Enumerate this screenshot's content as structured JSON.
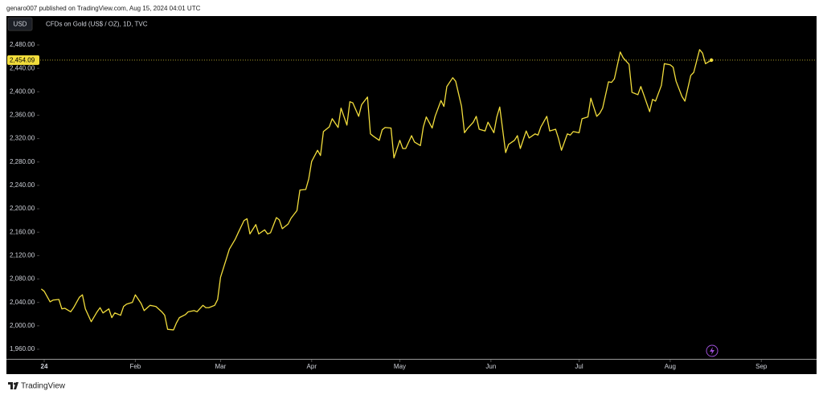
{
  "header": {
    "byline": "genaro007 published on TradingView.com, Aug 15, 2024 04:01 UTC"
  },
  "footer": {
    "brand": "TradingView"
  },
  "chart_data": {
    "type": "line",
    "title": "CFDs on Gold (US$ / OZ), 1D, TVC",
    "currency": "USD",
    "color": "#f2dd3c",
    "x": [
      -1,
      0,
      2,
      3,
      5,
      6,
      7,
      9,
      10,
      12,
      13,
      14,
      16,
      18,
      19,
      20,
      22,
      23,
      24,
      26,
      27,
      28,
      30,
      31,
      33,
      34,
      36,
      37,
      38,
      40,
      41,
      42,
      44,
      45,
      46,
      48,
      49,
      51,
      52,
      54,
      55,
      56,
      58,
      59,
      60,
      62,
      63,
      65,
      66,
      68,
      69,
      70,
      72,
      73,
      75,
      76,
      77,
      79,
      80,
      81,
      83,
      84,
      86,
      87,
      89,
      90,
      91,
      93,
      94,
      95,
      97,
      98,
      100,
      101,
      103,
      104,
      105,
      107,
      108,
      110,
      111,
      112,
      114,
      115,
      116,
      118,
      119,
      121,
      122,
      123,
      125,
      126,
      128,
      129,
      130,
      132,
      133,
      135,
      136,
      137,
      139,
      140,
      142,
      143,
      144,
      146,
      147,
      148,
      150,
      151,
      153,
      154,
      155,
      157,
      158,
      160,
      161,
      162,
      164,
      165,
      167,
      168,
      169,
      171,
      172,
      174,
      175,
      176,
      178,
      179,
      180,
      182,
      183,
      185,
      186,
      188,
      189,
      190,
      192,
      193,
      194,
      196,
      197,
      199,
      200,
      202,
      203,
      204,
      206,
      207,
      208,
      210,
      211,
      213,
      214,
      215,
      217,
      218,
      220,
      221,
      223,
      224,
      225,
      227
    ],
    "values": [
      2063,
      2059,
      2041,
      2044,
      2045,
      2029,
      2030,
      2024,
      2031,
      2049,
      2053,
      2029,
      2007,
      2024,
      2031,
      2022,
      2029,
      2014,
      2022,
      2018,
      2033,
      2037,
      2040,
      2053,
      2038,
      2026,
      2035,
      2034,
      2033,
      2024,
      2018,
      1994,
      1993,
      2005,
      2014,
      2019,
      2024,
      2026,
      2024,
      2035,
      2031,
      2031,
      2035,
      2045,
      2083,
      2115,
      2131,
      2148,
      2159,
      2180,
      2183,
      2157,
      2173,
      2157,
      2164,
      2157,
      2159,
      2185,
      2181,
      2166,
      2174,
      2184,
      2197,
      2232,
      2233,
      2251,
      2281,
      2300,
      2291,
      2332,
      2340,
      2354,
      2339,
      2372,
      2343,
      2383,
      2381,
      2358,
      2378,
      2391,
      2328,
      2324,
      2317,
      2335,
      2339,
      2338,
      2287,
      2317,
      2303,
      2303,
      2325,
      2314,
      2308,
      2340,
      2357,
      2338,
      2358,
      2385,
      2375,
      2409,
      2424,
      2418,
      2375,
      2330,
      2337,
      2348,
      2358,
      2336,
      2333,
      2348,
      2330,
      2357,
      2374,
      2296,
      2310,
      2317,
      2325,
      2303,
      2333,
      2321,
      2328,
      2326,
      2340,
      2358,
      2333,
      2336,
      2320,
      2300,
      2328,
      2326,
      2332,
      2330,
      2354,
      2357,
      2389,
      2358,
      2363,
      2372,
      2417,
      2416,
      2422,
      2468,
      2458,
      2447,
      2399,
      2395,
      2409,
      2395,
      2366,
      2387,
      2384,
      2411,
      2448,
      2446,
      2442,
      2418,
      2392,
      2384,
      2428,
      2433,
      2472,
      2466,
      2448,
      2454.09
    ],
    "last_price": {
      "value": 2454.09,
      "label": "2,454.09"
    },
    "xlim": [
      -1.37,
      262.8
    ],
    "xticks": [
      {
        "value": 0,
        "label": "24"
      },
      {
        "value": 31,
        "label": "Feb"
      },
      {
        "value": 60,
        "label": "Mar"
      },
      {
        "value": 91,
        "label": "Apr"
      },
      {
        "value": 121,
        "label": "May"
      },
      {
        "value": 152,
        "label": "Jun"
      },
      {
        "value": 182,
        "label": "Jul"
      },
      {
        "value": 213,
        "label": "Aug"
      },
      {
        "value": 244,
        "label": "Sep"
      }
    ],
    "ylim": [
      1943.5,
      2529.4
    ],
    "yticks": [
      {
        "value": 1960,
        "label": "1,960.00"
      },
      {
        "value": 2000,
        "label": "2,000.00"
      },
      {
        "value": 2040,
        "label": "2,040.00"
      },
      {
        "value": 2080,
        "label": "2,080.00"
      },
      {
        "value": 2120,
        "label": "2,120.00"
      },
      {
        "value": 2160,
        "label": "2,160.00"
      },
      {
        "value": 2200,
        "label": "2,200.00"
      },
      {
        "value": 2240,
        "label": "2,240.00"
      },
      {
        "value": 2280,
        "label": "2,280.00"
      },
      {
        "value": 2320,
        "label": "2,320.00"
      },
      {
        "value": 2360,
        "label": "2,360.00"
      },
      {
        "value": 2400,
        "label": "2,400.00"
      },
      {
        "value": 2440,
        "label": "2,440.00"
      },
      {
        "value": 2480,
        "label": "2,480.00"
      }
    ]
  }
}
